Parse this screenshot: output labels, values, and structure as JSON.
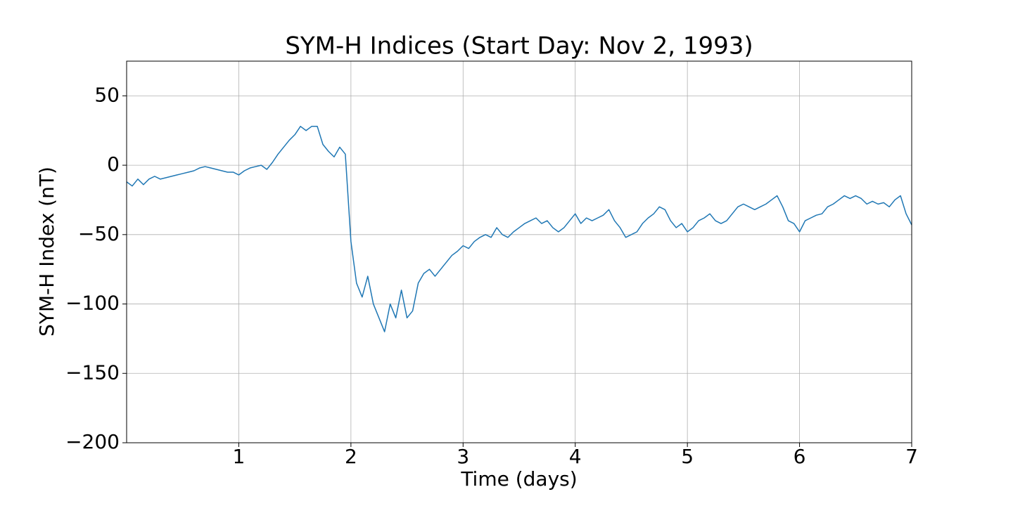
{
  "chart_data": {
    "type": "line",
    "title": "SYM-H Indices (Start Day: Nov 2, 1993)",
    "xlabel": "Time (days)",
    "ylabel": "SYM-H Index (nT)",
    "xlim": [
      0,
      7
    ],
    "xticks": [
      1,
      2,
      3,
      4,
      5,
      6,
      7
    ],
    "ylim": [
      -200,
      75
    ],
    "yticks": [
      {
        "value": -200,
        "label": "−200"
      },
      {
        "value": -150,
        "label": "−150"
      },
      {
        "value": -100,
        "label": "−100"
      },
      {
        "value": -50,
        "label": "−50"
      },
      0,
      50
    ],
    "grid": true,
    "x": [
      0,
      0.05,
      0.1,
      0.15,
      0.2,
      0.25,
      0.3,
      0.35,
      0.4,
      0.45,
      0.5,
      0.55,
      0.6,
      0.65,
      0.7,
      0.75,
      0.8,
      0.85,
      0.9,
      0.95,
      1,
      1.05,
      1.1,
      1.15,
      1.2,
      1.25,
      1.3,
      1.35,
      1.4,
      1.45,
      1.5,
      1.55,
      1.6,
      1.65,
      1.7,
      1.75,
      1.8,
      1.85,
      1.9,
      1.95,
      2,
      2.05,
      2.1,
      2.15,
      2.2,
      2.25,
      2.3,
      2.35,
      2.4,
      2.45,
      2.5,
      2.55,
      2.6,
      2.65,
      2.7,
      2.75,
      2.8,
      2.85,
      2.9,
      2.95,
      3,
      3.05,
      3.1,
      3.15,
      3.2,
      3.25,
      3.3,
      3.35,
      3.4,
      3.45,
      3.5,
      3.55,
      3.6,
      3.65,
      3.7,
      3.75,
      3.8,
      3.85,
      3.9,
      3.95,
      4,
      4.05,
      4.1,
      4.15,
      4.2,
      4.25,
      4.3,
      4.35,
      4.4,
      4.45,
      4.5,
      4.55,
      4.6,
      4.65,
      4.7,
      4.75,
      4.8,
      4.85,
      4.9,
      4.95,
      5,
      5.05,
      5.1,
      5.15,
      5.2,
      5.25,
      5.3,
      5.35,
      5.4,
      5.45,
      5.5,
      5.55,
      5.6,
      5.65,
      5.7,
      5.75,
      5.8,
      5.85,
      5.9,
      5.95,
      6,
      6.05,
      6.1,
      6.15,
      6.2,
      6.25,
      6.3,
      6.35,
      6.4,
      6.45,
      6.5,
      6.55,
      6.6,
      6.65,
      6.7,
      6.75,
      6.8,
      6.85,
      6.9,
      6.95,
      7
    ],
    "series": [
      {
        "color": "#1f77b4",
        "values": [
          -12,
          -15,
          -10,
          -14,
          -10,
          -8,
          -10,
          -9,
          -8,
          -7,
          -6,
          -5,
          -4,
          -2,
          -1,
          -2,
          -3,
          -4,
          -5,
          -5,
          -7,
          -4,
          -2,
          -1,
          0,
          -3,
          2,
          8,
          13,
          18,
          22,
          28,
          25,
          28,
          28,
          15,
          10,
          6,
          13,
          8,
          -55,
          -85,
          -95,
          -80,
          -100,
          -110,
          -120,
          -100,
          -110,
          -90,
          -110,
          -105,
          -85,
          -78,
          -75,
          -80,
          -75,
          -70,
          -65,
          -62,
          -58,
          -60,
          -55,
          -52,
          -50,
          -52,
          -45,
          -50,
          -52,
          -48,
          -45,
          -42,
          -40,
          -38,
          -42,
          -40,
          -45,
          -48,
          -45,
          -40,
          -35,
          -42,
          -38,
          -40,
          -38,
          -36,
          -32,
          -40,
          -45,
          -52,
          -50,
          -48,
          -42,
          -38,
          -35,
          -30,
          -32,
          -40,
          -45,
          -42,
          -48,
          -45,
          -40,
          -38,
          -35,
          -40,
          -42,
          -40,
          -35,
          -30,
          -28,
          -30,
          -32,
          -30,
          -28,
          -25,
          -22,
          -30,
          -40,
          -42,
          -48,
          -40,
          -38,
          -36,
          -35,
          -30,
          -28,
          -25,
          -22,
          -24,
          -22,
          -24,
          -28,
          -26,
          -28,
          -27,
          -30,
          -25,
          -22,
          -35,
          -43
        ]
      }
    ]
  }
}
